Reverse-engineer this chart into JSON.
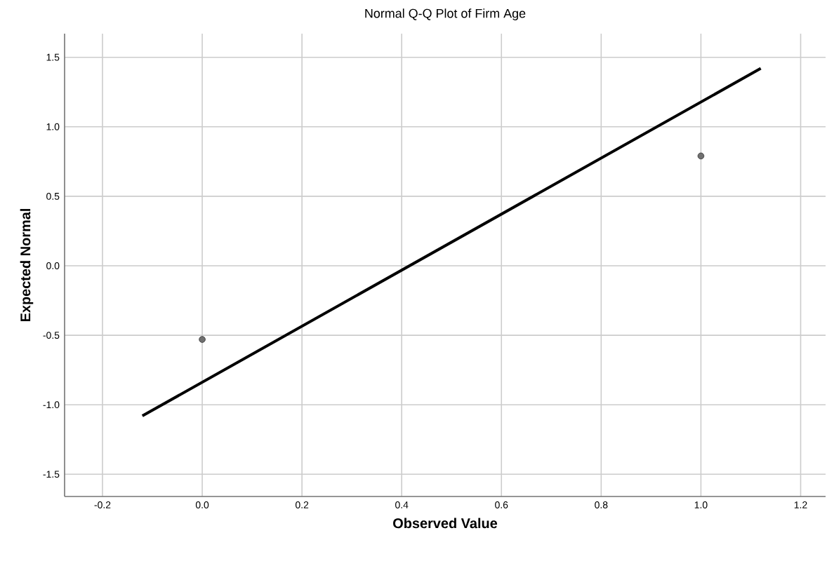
{
  "chart_data": {
    "type": "scatter",
    "title": "Normal Q-Q Plot of Firm Age",
    "xlabel": "Observed Value",
    "ylabel": "Expected Normal",
    "xlim": [
      -0.276,
      1.25
    ],
    "ylim": [
      -1.66,
      1.67
    ],
    "xticks": [
      {
        "value": -0.2,
        "label": "-0.2"
      },
      {
        "value": 0,
        "label": "0.0"
      },
      {
        "value": 0.2,
        "label": "0.2"
      },
      {
        "value": 0.4,
        "label": "0.4"
      },
      {
        "value": 0.6,
        "label": "0.6"
      },
      {
        "value": 0.8,
        "label": "0.8"
      },
      {
        "value": 1,
        "label": "1.0"
      },
      {
        "value": 1.2,
        "label": "1.2"
      }
    ],
    "yticks": [
      {
        "value": -1.5,
        "label": "-1.5"
      },
      {
        "value": -1,
        "label": "-1.0"
      },
      {
        "value": -0.5,
        "label": "-0.5"
      },
      {
        "value": 0,
        "label": "0.0"
      },
      {
        "value": 0.5,
        "label": "0.5"
      },
      {
        "value": 1,
        "label": "1.0"
      },
      {
        "value": 1.5,
        "label": "1.5"
      }
    ],
    "grid": true,
    "series": [
      {
        "color": "#707070",
        "marker": "circle",
        "x": [
          0,
          1
        ],
        "values": [
          -0.53,
          0.79
        ]
      },
      {
        "type": "line",
        "color": "#000000",
        "marker": "none",
        "x": [
          -0.12,
          1.12
        ],
        "values": [
          -1.08,
          1.42
        ]
      }
    ]
  }
}
